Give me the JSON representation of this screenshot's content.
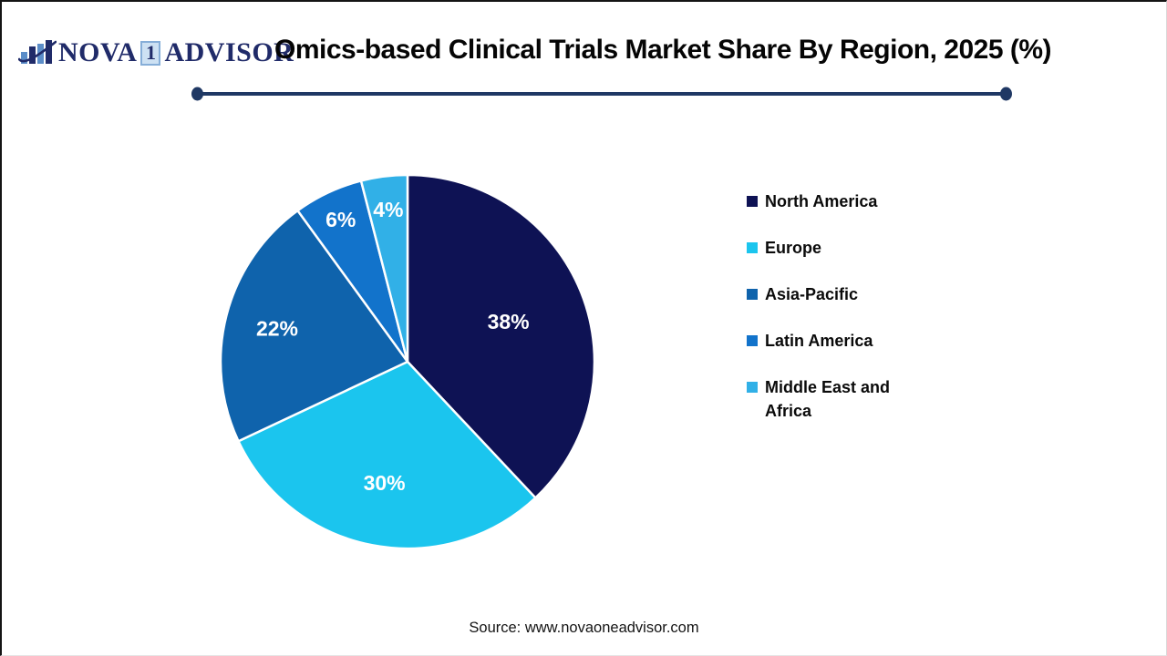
{
  "header": {
    "logo": {
      "icon": "bar-chart-swoosh-icon",
      "word1": "NOVA",
      "word2": "1",
      "word3": "ADVISOR"
    },
    "title": "Omics-based Clinical Trials Market Share By Region, 2025 (%)"
  },
  "chart_data": {
    "type": "pie",
    "title": "Omics-based Clinical Trials Market Share By Region, 2025 (%)",
    "unit": "%",
    "start_angle_deg": 0,
    "direction": "clockwise",
    "legend_position": "right",
    "data_label_color": "#FFFFFF",
    "categories": [
      "North America",
      "Europe",
      "Asia-Pacific",
      "Latin America",
      "Middle East and Africa"
    ],
    "values": [
      38,
      30,
      22,
      6,
      4
    ],
    "slices": [
      {
        "label": "North America",
        "value": 38,
        "color": "#0E1254",
        "label_radius_frac": 0.58
      },
      {
        "label": "Europe",
        "value": 30,
        "color": "#1BC5EE",
        "label_radius_frac": 0.66
      },
      {
        "label": "Asia-Pacific",
        "value": 22,
        "color": "#0F63AC",
        "label_radius_frac": 0.72
      },
      {
        "label": "Latin America",
        "value": 6,
        "color": "#1273CB",
        "label_radius_frac": 0.84
      },
      {
        "label": "Middle East and Africa",
        "value": 4,
        "color": "#31B0E7",
        "label_radius_frac": 0.82
      }
    ]
  },
  "footer": {
    "source": "Source: www.novaoneadvisor.com"
  },
  "colors": {
    "divider": "#1F3864",
    "logo_navy": "#202B69",
    "logo_light_blue": "#5B8DC8",
    "one_box_bg": "#CDE1F3",
    "one_box_border": "#86AED8",
    "title_text": "#050505"
  }
}
